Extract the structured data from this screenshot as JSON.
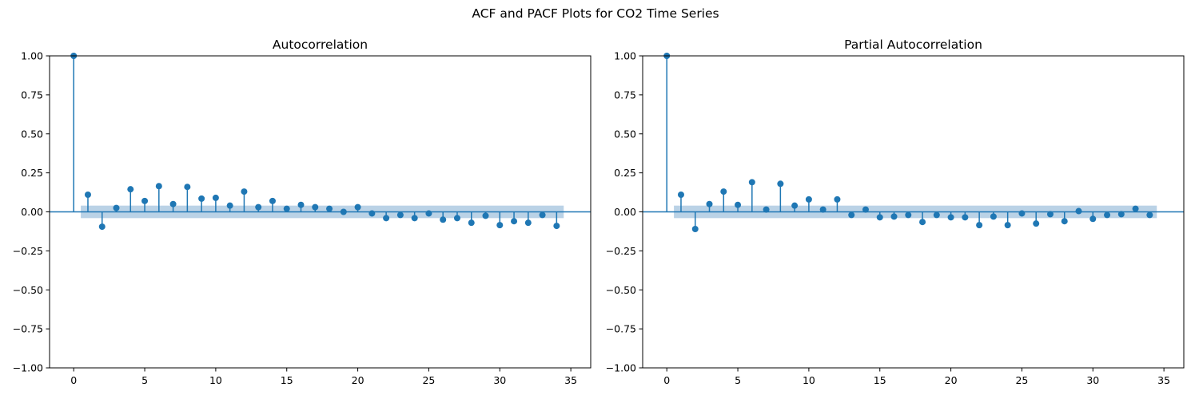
{
  "figure": {
    "title": "ACF and PACF Plots for CO2 Time Series"
  },
  "chart_data": [
    {
      "type": "stem",
      "title": "Autocorrelation",
      "xlabel": "",
      "ylabel": "",
      "xlim": [
        -1.7,
        36.4
      ],
      "ylim": [
        -1.0,
        1.0
      ],
      "xticks": [
        0,
        5,
        10,
        15,
        20,
        25,
        30,
        35
      ],
      "yticks": [
        -1.0,
        -0.75,
        -0.5,
        -0.25,
        0.0,
        0.25,
        0.5,
        0.75,
        1.0
      ],
      "ytick_labels": [
        "−1.00",
        "−0.75",
        "−0.50",
        "−0.25",
        "0.00",
        "0.25",
        "0.50",
        "0.75",
        "1.00"
      ],
      "grid": false,
      "color": "#1f77b4",
      "confint_color": "#b3cde3",
      "confint_band": [
        [
          0.5,
          0.04
        ],
        [
          34.5,
          0.04
        ]
      ],
      "lags": [
        0,
        1,
        2,
        3,
        4,
        5,
        6,
        7,
        8,
        9,
        10,
        11,
        12,
        13,
        14,
        15,
        16,
        17,
        18,
        19,
        20,
        21,
        22,
        23,
        24,
        25,
        26,
        27,
        28,
        29,
        30,
        31,
        32,
        33,
        34
      ],
      "values": [
        1.0,
        0.11,
        -0.095,
        0.025,
        0.145,
        0.07,
        0.165,
        0.05,
        0.16,
        0.085,
        0.09,
        0.04,
        0.13,
        0.03,
        0.07,
        0.02,
        0.045,
        0.03,
        0.02,
        0.0,
        0.03,
        -0.01,
        -0.04,
        -0.02,
        -0.04,
        -0.01,
        -0.05,
        -0.04,
        -0.07,
        -0.025,
        -0.085,
        -0.06,
        -0.07,
        -0.02,
        -0.09
      ]
    },
    {
      "type": "stem",
      "title": "Partial Autocorrelation",
      "xlabel": "",
      "ylabel": "",
      "xlim": [
        -1.7,
        36.4
      ],
      "ylim": [
        -1.0,
        1.0
      ],
      "xticks": [
        0,
        5,
        10,
        15,
        20,
        25,
        30,
        35
      ],
      "yticks": [
        -1.0,
        -0.75,
        -0.5,
        -0.25,
        0.0,
        0.25,
        0.5,
        0.75,
        1.0
      ],
      "ytick_labels": [
        "−1.00",
        "−0.75",
        "−0.50",
        "−0.25",
        "0.00",
        "0.25",
        "0.50",
        "0.75",
        "1.00"
      ],
      "grid": false,
      "color": "#1f77b4",
      "confint_color": "#b3cde3",
      "confint_band": [
        [
          0.5,
          0.04
        ],
        [
          34.5,
          0.04
        ]
      ],
      "lags": [
        0,
        1,
        2,
        3,
        4,
        5,
        6,
        7,
        8,
        9,
        10,
        11,
        12,
        13,
        14,
        15,
        16,
        17,
        18,
        19,
        20,
        21,
        22,
        23,
        24,
        25,
        26,
        27,
        28,
        29,
        30,
        31,
        32,
        33,
        34
      ],
      "values": [
        1.0,
        0.11,
        -0.11,
        0.05,
        0.13,
        0.045,
        0.19,
        0.015,
        0.18,
        0.04,
        0.08,
        0.015,
        0.08,
        -0.02,
        0.015,
        -0.035,
        -0.03,
        -0.02,
        -0.065,
        -0.02,
        -0.035,
        -0.035,
        -0.085,
        -0.03,
        -0.085,
        -0.01,
        -0.075,
        -0.015,
        -0.06,
        0.005,
        -0.045,
        -0.02,
        -0.015,
        0.02,
        -0.02
      ]
    }
  ]
}
